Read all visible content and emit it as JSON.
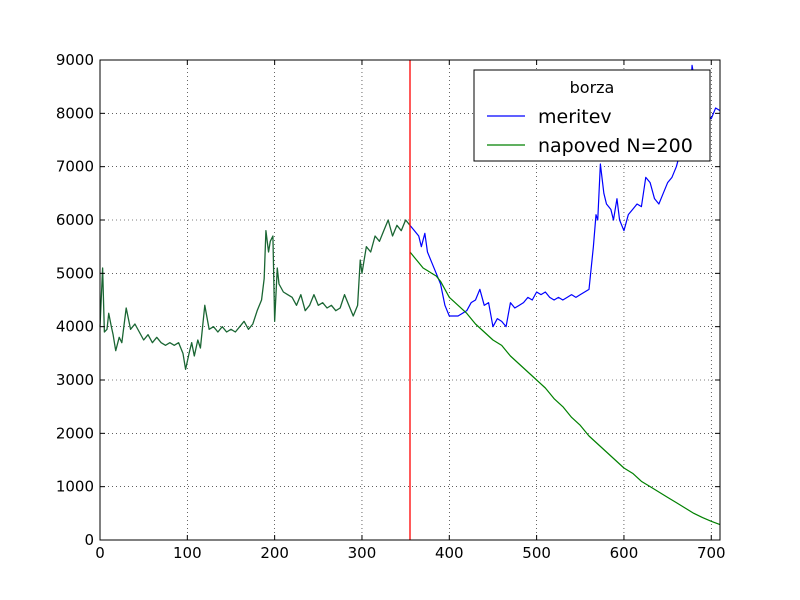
{
  "chart_data": {
    "type": "line",
    "title": "",
    "xlabel": "",
    "ylabel": "",
    "xlim": [
      0,
      710
    ],
    "ylim": [
      0,
      9000
    ],
    "xticks": [
      0,
      100,
      200,
      300,
      400,
      500,
      600,
      700
    ],
    "yticks": [
      0,
      1000,
      2000,
      3000,
      4000,
      5000,
      6000,
      7000,
      8000,
      9000
    ],
    "grid": true,
    "legend": {
      "title": "borza",
      "placement": "top-right"
    },
    "vline": {
      "x": 355,
      "color": "#ff0000"
    },
    "colors": {
      "meritev": "#0000ff",
      "napoved": "#008000",
      "overlap": "#1a6633"
    },
    "series": [
      {
        "name": "meritev",
        "color": "#0000ff",
        "points": [
          [
            0,
            4000
          ],
          [
            3,
            5100
          ],
          [
            5,
            3900
          ],
          [
            8,
            3950
          ],
          [
            10,
            4250
          ],
          [
            13,
            4000
          ],
          [
            15,
            3850
          ],
          [
            18,
            3550
          ],
          [
            22,
            3800
          ],
          [
            25,
            3700
          ],
          [
            30,
            4350
          ],
          [
            35,
            3950
          ],
          [
            40,
            4050
          ],
          [
            45,
            3900
          ],
          [
            50,
            3750
          ],
          [
            55,
            3850
          ],
          [
            60,
            3700
          ],
          [
            65,
            3800
          ],
          [
            70,
            3700
          ],
          [
            75,
            3650
          ],
          [
            80,
            3700
          ],
          [
            85,
            3650
          ],
          [
            90,
            3700
          ],
          [
            95,
            3500
          ],
          [
            98,
            3200
          ],
          [
            102,
            3500
          ],
          [
            105,
            3700
          ],
          [
            108,
            3450
          ],
          [
            112,
            3750
          ],
          [
            115,
            3600
          ],
          [
            120,
            4400
          ],
          [
            125,
            3950
          ],
          [
            130,
            4000
          ],
          [
            135,
            3900
          ],
          [
            140,
            4000
          ],
          [
            145,
            3900
          ],
          [
            150,
            3950
          ],
          [
            155,
            3900
          ],
          [
            160,
            4000
          ],
          [
            165,
            4100
          ],
          [
            170,
            3950
          ],
          [
            175,
            4050
          ],
          [
            180,
            4300
          ],
          [
            185,
            4500
          ],
          [
            188,
            4900
          ],
          [
            190,
            5800
          ],
          [
            193,
            5400
          ],
          [
            195,
            5600
          ],
          [
            198,
            5700
          ],
          [
            200,
            4100
          ],
          [
            203,
            5100
          ],
          [
            205,
            4800
          ],
          [
            210,
            4650
          ],
          [
            215,
            4600
          ],
          [
            220,
            4550
          ],
          [
            225,
            4400
          ],
          [
            230,
            4600
          ],
          [
            235,
            4300
          ],
          [
            240,
            4400
          ],
          [
            245,
            4600
          ],
          [
            250,
            4400
          ],
          [
            255,
            4450
          ],
          [
            260,
            4350
          ],
          [
            265,
            4400
          ],
          [
            270,
            4300
          ],
          [
            275,
            4350
          ],
          [
            280,
            4600
          ],
          [
            285,
            4400
          ],
          [
            290,
            4200
          ],
          [
            295,
            4400
          ],
          [
            298,
            5250
          ],
          [
            300,
            5000
          ],
          [
            305,
            5500
          ],
          [
            310,
            5400
          ],
          [
            315,
            5700
          ],
          [
            320,
            5600
          ],
          [
            325,
            5800
          ],
          [
            330,
            6000
          ],
          [
            335,
            5700
          ],
          [
            340,
            5900
          ],
          [
            345,
            5800
          ],
          [
            350,
            6000
          ],
          [
            355,
            5900
          ],
          [
            360,
            5800
          ],
          [
            365,
            5700
          ],
          [
            368,
            5500
          ],
          [
            372,
            5750
          ],
          [
            375,
            5400
          ],
          [
            380,
            5200
          ],
          [
            385,
            5000
          ],
          [
            390,
            4800
          ],
          [
            395,
            4400
          ],
          [
            400,
            4200
          ],
          [
            405,
            4200
          ],
          [
            410,
            4200
          ],
          [
            415,
            4250
          ],
          [
            420,
            4300
          ],
          [
            425,
            4450
          ],
          [
            430,
            4500
          ],
          [
            435,
            4700
          ],
          [
            440,
            4400
          ],
          [
            445,
            4450
          ],
          [
            450,
            4000
          ],
          [
            455,
            4150
          ],
          [
            460,
            4100
          ],
          [
            465,
            4000
          ],
          [
            470,
            4450
          ],
          [
            475,
            4350
          ],
          [
            480,
            4400
          ],
          [
            485,
            4450
          ],
          [
            490,
            4550
          ],
          [
            495,
            4500
          ],
          [
            500,
            4650
          ],
          [
            505,
            4600
          ],
          [
            510,
            4650
          ],
          [
            515,
            4550
          ],
          [
            520,
            4500
          ],
          [
            525,
            4550
          ],
          [
            530,
            4500
          ],
          [
            535,
            4550
          ],
          [
            540,
            4600
          ],
          [
            545,
            4550
          ],
          [
            550,
            4600
          ],
          [
            555,
            4650
          ],
          [
            560,
            4700
          ],
          [
            565,
            5500
          ],
          [
            568,
            6100
          ],
          [
            570,
            6000
          ],
          [
            573,
            7050
          ],
          [
            577,
            6500
          ],
          [
            580,
            6300
          ],
          [
            585,
            6200
          ],
          [
            588,
            6000
          ],
          [
            592,
            6400
          ],
          [
            595,
            6000
          ],
          [
            600,
            5800
          ],
          [
            605,
            6100
          ],
          [
            610,
            6200
          ],
          [
            615,
            6300
          ],
          [
            620,
            6250
          ],
          [
            625,
            6800
          ],
          [
            630,
            6700
          ],
          [
            635,
            6400
          ],
          [
            640,
            6300
          ],
          [
            645,
            6500
          ],
          [
            650,
            6700
          ],
          [
            655,
            6800
          ],
          [
            660,
            7000
          ],
          [
            665,
            7300
          ],
          [
            670,
            7600
          ],
          [
            675,
            8000
          ],
          [
            678,
            8900
          ],
          [
            680,
            8700
          ],
          [
            685,
            8500
          ],
          [
            690,
            8200
          ],
          [
            695,
            8000
          ],
          [
            700,
            7900
          ],
          [
            705,
            8100
          ],
          [
            710,
            8050
          ]
        ]
      },
      {
        "name": "napoved N=200",
        "color": "#008000",
        "points": [
          [
            355,
            5400
          ],
          [
            360,
            5300
          ],
          [
            365,
            5200
          ],
          [
            370,
            5100
          ],
          [
            375,
            5050
          ],
          [
            380,
            5000
          ],
          [
            385,
            4950
          ],
          [
            390,
            4850
          ],
          [
            395,
            4700
          ],
          [
            400,
            4550
          ],
          [
            410,
            4400
          ],
          [
            420,
            4250
          ],
          [
            430,
            4050
          ],
          [
            440,
            3900
          ],
          [
            450,
            3750
          ],
          [
            460,
            3650
          ],
          [
            470,
            3450
          ],
          [
            480,
            3300
          ],
          [
            490,
            3150
          ],
          [
            500,
            3000
          ],
          [
            510,
            2850
          ],
          [
            520,
            2650
          ],
          [
            530,
            2500
          ],
          [
            540,
            2300
          ],
          [
            550,
            2150
          ],
          [
            560,
            1950
          ],
          [
            570,
            1800
          ],
          [
            580,
            1650
          ],
          [
            590,
            1500
          ],
          [
            600,
            1350
          ],
          [
            610,
            1250
          ],
          [
            620,
            1100
          ],
          [
            630,
            1000
          ],
          [
            640,
            900
          ],
          [
            650,
            800
          ],
          [
            660,
            700
          ],
          [
            670,
            600
          ],
          [
            680,
            500
          ],
          [
            690,
            420
          ],
          [
            700,
            350
          ],
          [
            710,
            290
          ]
        ]
      }
    ]
  }
}
